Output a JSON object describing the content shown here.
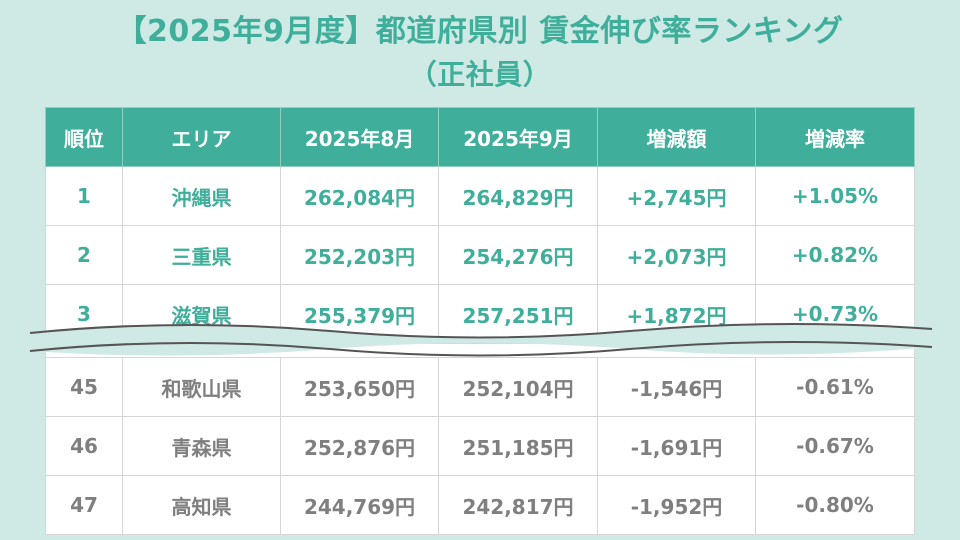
{
  "title": {
    "line1": "【2025年9月度】都道府県別 賃金伸び率ランキング",
    "line2": "（正社員）"
  },
  "table": {
    "headers": [
      "順位",
      "エリア",
      "2025年8月",
      "2025年9月",
      "増減額",
      "増減率"
    ],
    "top_rows": [
      {
        "rank": "1",
        "area": "沖縄県",
        "aug": "262,084円",
        "sep": "264,829円",
        "diff": "+2,745円",
        "rate": "+1.05%"
      },
      {
        "rank": "2",
        "area": "三重県",
        "aug": "252,203円",
        "sep": "254,276円",
        "diff": "+2,073円",
        "rate": "+0.82%"
      },
      {
        "rank": "3",
        "area": "滋賀県",
        "aug": "255,379円",
        "sep": "257,251円",
        "diff": "+1,872円",
        "rate": "+0.73%"
      }
    ],
    "bottom_rows": [
      {
        "rank": "45",
        "area": "和歌山県",
        "aug": "253,650円",
        "sep": "252,104円",
        "diff": "-1,546円",
        "rate": "-0.61%"
      },
      {
        "rank": "46",
        "area": "青森県",
        "aug": "252,876円",
        "sep": "251,185円",
        "diff": "-1,691円",
        "rate": "-0.67%"
      },
      {
        "rank": "47",
        "area": "高知県",
        "aug": "244,769円",
        "sep": "242,817円",
        "diff": "-1,952円",
        "rate": "-0.80%"
      }
    ]
  },
  "colors": {
    "accent": "#3fae9a",
    "background": "#cfe9e5",
    "muted_text": "#7f7f7f"
  }
}
